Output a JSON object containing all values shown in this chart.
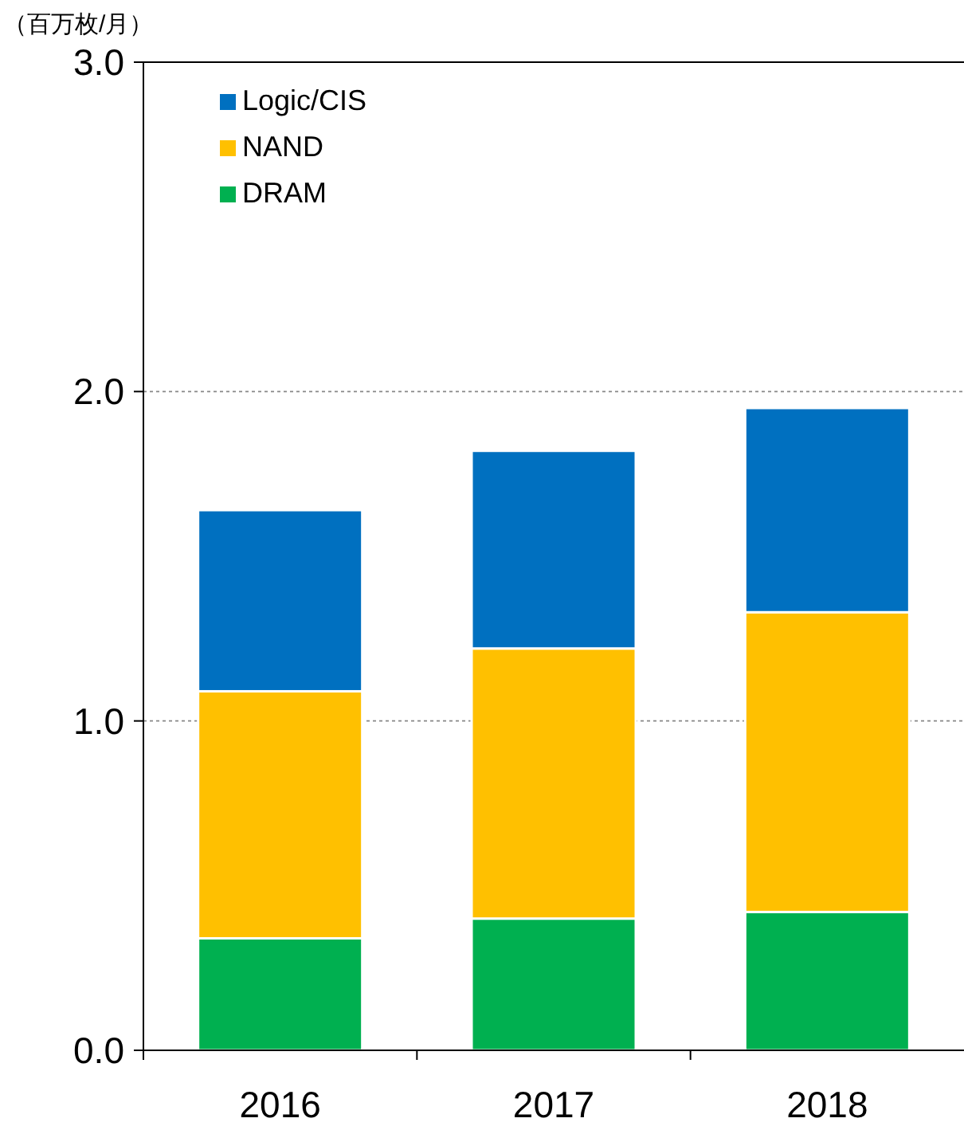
{
  "chart_data": {
    "type": "bar",
    "stacked": true,
    "ylabel": "（百万枚/月）",
    "categories": [
      "2016",
      "2017",
      "2018"
    ],
    "series": [
      {
        "name": "DRAM",
        "color": "#00b050",
        "values": [
          0.34,
          0.4,
          0.42
        ]
      },
      {
        "name": "NAND",
        "color": "#ffc000",
        "values": [
          0.75,
          0.82,
          0.91
        ]
      },
      {
        "name": "Logic/CIS",
        "color": "#0070c0",
        "values": [
          0.55,
          0.6,
          0.62
        ]
      }
    ],
    "ylim": [
      0,
      3
    ],
    "yticks": [
      {
        "value": 0,
        "label": "0.0"
      },
      {
        "value": 1,
        "label": "1.0"
      },
      {
        "value": 2,
        "label": "2.0"
      },
      {
        "value": 3,
        "label": "3.0"
      }
    ],
    "grid": "y",
    "legend": "top left"
  }
}
